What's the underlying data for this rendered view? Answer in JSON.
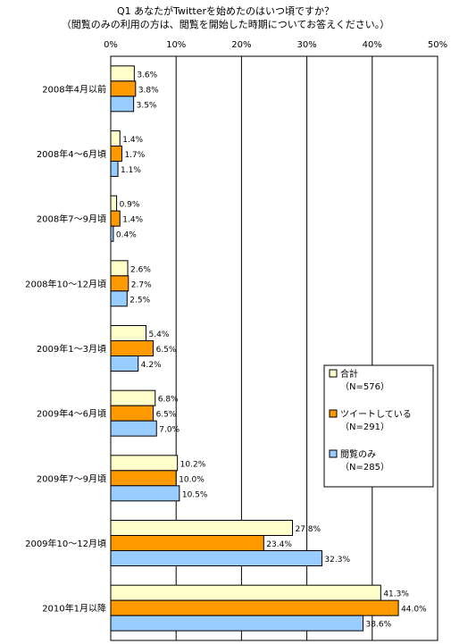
{
  "title_line1": "Q1 あなたがTwitterを始めたのはいつ頃ですか？",
  "title_line2": "（閲覧のみの利用の方は、閲覧を開始した時期についてお答えください。）",
  "chart_data": {
    "type": "bar",
    "orientation": "horizontal",
    "xlim": [
      0,
      50
    ],
    "x_ticks": [
      "0%",
      "10%",
      "20%",
      "30%",
      "40%",
      "50%"
    ],
    "categories": [
      "2008年4月以前",
      "2008年4～6月頃",
      "2008年7～9月頃",
      "2008年10～12月頃",
      "2009年1～3月頃",
      "2009年4～6月頃",
      "2009年7～9月頃",
      "2009年10～12月頃",
      "2010年1月以降"
    ],
    "series": [
      {
        "name": "合計",
        "name_n": "（N=576）",
        "color": "#FFFFCC",
        "values": [
          3.6,
          1.4,
          0.9,
          2.6,
          5.4,
          6.8,
          10.2,
          27.8,
          41.3
        ],
        "labels": [
          "3.6%",
          "1.4%",
          "0.9%",
          "2.6%",
          "5.4%",
          "6.8%",
          "10.2%",
          "27.8%",
          "41.3%"
        ]
      },
      {
        "name": "ツイートしている",
        "name_n": "（N=291）",
        "color": "#FF9900",
        "values": [
          3.8,
          1.7,
          1.4,
          2.7,
          6.5,
          6.5,
          10.0,
          23.4,
          44.0
        ],
        "labels": [
          "3.8%",
          "1.7%",
          "1.4%",
          "2.7%",
          "6.5%",
          "6.5%",
          "10.0%",
          "23.4%",
          "44.0%"
        ]
      },
      {
        "name": "閲覧のみ",
        "name_n": "（N=285）",
        "color": "#99CCFF",
        "values": [
          3.5,
          1.1,
          0.4,
          2.5,
          4.2,
          7.0,
          10.5,
          32.3,
          38.6
        ],
        "labels": [
          "3.5%",
          "1.1%",
          "0.4%",
          "2.5%",
          "4.2%",
          "7.0%",
          "10.5%",
          "32.3%",
          "38.6%"
        ]
      }
    ],
    "grid": true,
    "legend_position": "right"
  }
}
